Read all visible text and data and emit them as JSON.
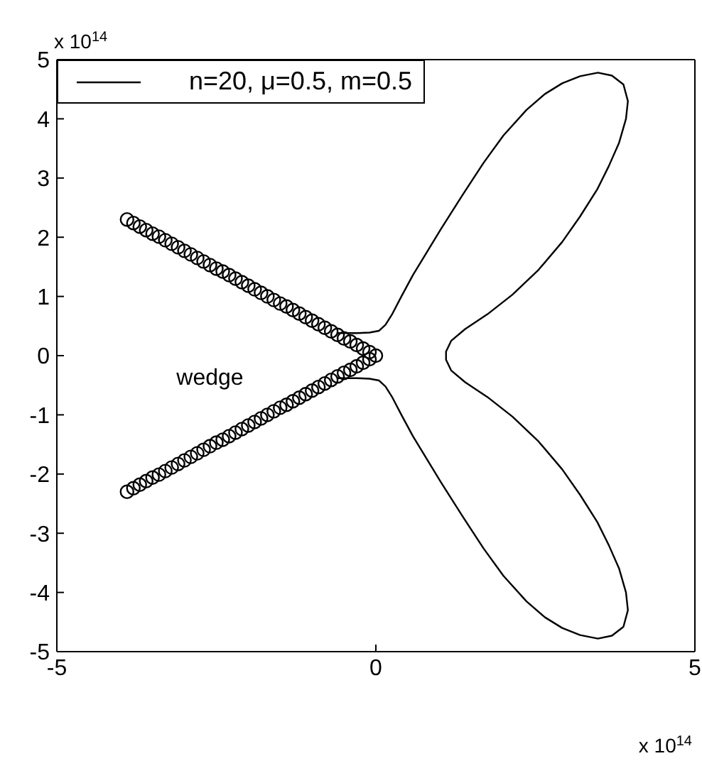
{
  "chart_data": {
    "type": "line",
    "xlim": [
      -5,
      5
    ],
    "xticks": [
      -5,
      0,
      5
    ],
    "ylim": [
      -5,
      5
    ],
    "yticks": [
      -5,
      -4,
      -3,
      -2,
      -1,
      0,
      1,
      2,
      3,
      4,
      5
    ],
    "grid": false,
    "legend": "top left",
    "annotations": [
      "x 10$^{14}$",
      "x 10$^{14}$",
      "wedge"
    ],
    "series": [
      {
        "name": "n=20, μ=0.5, m=0.5",
        "color": "#000000",
        "marker": "none",
        "line_style": "solid",
        "x": [
          -0.6,
          -0.3,
          -0.1,
          0.05,
          0.15,
          0.25,
          0.4,
          0.58,
          0.8,
          1.02,
          1.35,
          1.69,
          2.0,
          2.36,
          2.65,
          2.92,
          3.2,
          3.48,
          3.7,
          3.88,
          3.95,
          3.92,
          3.81,
          3.65,
          3.47,
          3.2,
          2.92,
          2.55,
          2.14,
          1.75,
          1.4,
          1.18,
          1.1,
          1.1,
          1.1,
          1.18,
          1.4,
          1.75,
          2.14,
          2.55,
          2.92,
          3.2,
          3.47,
          3.65,
          3.81,
          3.92,
          3.95,
          3.88,
          3.7,
          3.48,
          3.2,
          2.92,
          2.65,
          2.36,
          2.0,
          1.69,
          1.35,
          1.02,
          0.8,
          0.58,
          0.4,
          0.25,
          0.15,
          0.05,
          -0.1,
          -0.3,
          -0.6
        ],
        "values": [
          0.38,
          0.38,
          0.39,
          0.42,
          0.52,
          0.69,
          1.0,
          1.36,
          1.75,
          2.14,
          2.7,
          3.26,
          3.72,
          4.15,
          4.42,
          4.6,
          4.72,
          4.78,
          4.73,
          4.58,
          4.3,
          4.0,
          3.59,
          3.2,
          2.81,
          2.35,
          1.92,
          1.45,
          1.03,
          0.7,
          0.45,
          0.25,
          0.07,
          0,
          -0.07,
          -0.25,
          -0.45,
          -0.7,
          -1.03,
          -1.45,
          -1.92,
          -2.35,
          -2.81,
          -3.2,
          -3.59,
          -4.0,
          -4.3,
          -4.58,
          -4.73,
          -4.78,
          -4.72,
          -4.6,
          -4.42,
          -4.15,
          -3.72,
          -3.26,
          -2.7,
          -2.14,
          -1.75,
          -1.36,
          -1.0,
          -0.69,
          -0.52,
          -0.42,
          -0.39,
          -0.38,
          -0.38
        ]
      },
      {
        "type": "scatter",
        "color": "#000000",
        "marker": "circle",
        "x": [
          0,
          -0.1,
          -0.2,
          -0.3,
          -0.4,
          -0.5,
          -0.6,
          -0.7,
          -0.8,
          -0.9,
          -1.0,
          -1.1,
          -1.2,
          -1.3,
          -1.4,
          -1.5,
          -1.6,
          -1.7,
          -1.8,
          -1.9,
          -2.0,
          -2.1,
          -2.2,
          -2.3,
          -2.4,
          -2.5,
          -2.6,
          -2.7,
          -2.8,
          -2.9,
          -3.0,
          -3.1,
          -3.2,
          -3.3,
          -3.4,
          -3.5,
          -3.6,
          -3.7,
          -3.8,
          -3.9,
          -0.1,
          -0.2,
          -0.3,
          -0.4,
          -0.5,
          -0.6,
          -0.7,
          -0.8,
          -0.9,
          -1.0,
          -1.1,
          -1.2,
          -1.3,
          -1.4,
          -1.5,
          -1.6,
          -1.7,
          -1.8,
          -1.9,
          -2.0,
          -2.1,
          -2.2,
          -2.3,
          -2.4,
          -2.5,
          -2.6,
          -2.7,
          -2.8,
          -2.9,
          -3.0,
          -3.1,
          -3.2,
          -3.3,
          -3.4,
          -3.5,
          -3.6,
          -3.7,
          -3.8,
          -3.9
        ],
        "values": [
          0,
          0.06,
          0.12,
          0.18,
          0.24,
          0.29,
          0.35,
          0.41,
          0.47,
          0.53,
          0.59,
          0.65,
          0.71,
          0.77,
          0.83,
          0.88,
          0.94,
          1.0,
          1.06,
          1.12,
          1.18,
          1.24,
          1.3,
          1.36,
          1.42,
          1.47,
          1.53,
          1.59,
          1.65,
          1.71,
          1.77,
          1.83,
          1.89,
          1.95,
          2.01,
          2.06,
          2.12,
          2.18,
          2.24,
          2.3,
          -0.06,
          -0.12,
          -0.18,
          -0.24,
          -0.29,
          -0.35,
          -0.41,
          -0.47,
          -0.53,
          -0.59,
          -0.65,
          -0.71,
          -0.77,
          -0.83,
          -0.88,
          -0.94,
          -1.0,
          -1.06,
          -1.12,
          -1.18,
          -1.24,
          -1.3,
          -1.36,
          -1.42,
          -1.47,
          -1.53,
          -1.59,
          -1.65,
          -1.71,
          -1.77,
          -1.83,
          -1.89,
          -1.95,
          -2.01,
          -2.06,
          -2.12,
          -2.18,
          -2.24,
          -2.3
        ]
      }
    ]
  }
}
